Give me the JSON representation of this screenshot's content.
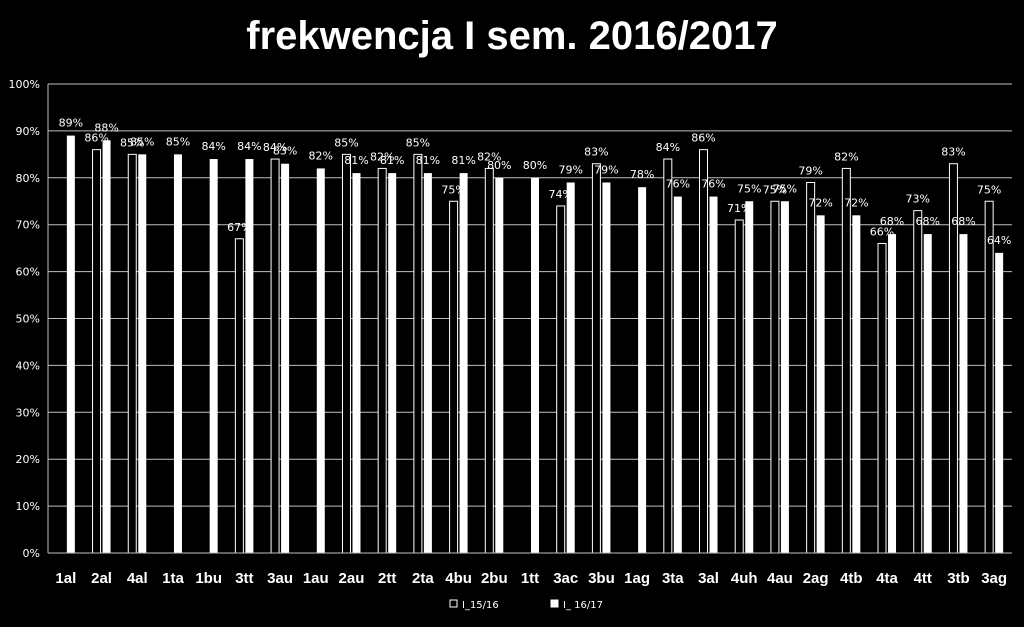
{
  "chart_data": {
    "type": "bar",
    "title": "frekwencja I sem. 2016/2017",
    "xlabel": "",
    "ylabel": "",
    "ylim": [
      0,
      100
    ],
    "y_ticks": [
      "0%",
      "10%",
      "20%",
      "30%",
      "40%",
      "50%",
      "60%",
      "70%",
      "80%",
      "90%",
      "100%"
    ],
    "grid": true,
    "legend_position": "bottom",
    "categories": [
      "1al",
      "2al",
      "4al",
      "1ta",
      "1bu",
      "3tt",
      "3au",
      "1au",
      "2au",
      "2tt",
      "2ta",
      "4bu",
      "2bu",
      "1tt",
      "3ac",
      "3bu",
      "1ag",
      "3ta",
      "3al",
      "4uh",
      "4au",
      "2ag",
      "4tb",
      "4ta",
      "4tt",
      "3tb",
      "3ag"
    ],
    "series": [
      {
        "name": "I_15/16",
        "color": "#000000",
        "values": [
          null,
          86,
          85,
          null,
          null,
          67,
          84,
          null,
          85,
          82,
          85,
          75,
          82,
          null,
          74,
          83,
          null,
          84,
          86,
          71,
          75,
          79,
          82,
          66,
          73,
          83,
          75
        ],
        "labels": [
          "",
          "86%",
          "85%",
          "",
          "",
          "67%",
          "84%",
          "",
          "85%",
          "82%",
          "85%",
          "75%",
          "82%",
          "",
          "74%",
          "83%",
          "",
          "84%",
          "86%",
          "71%",
          "75%",
          "79%",
          "82%",
          "66%",
          "73%",
          "83%",
          "75%"
        ]
      },
      {
        "name": "I_ 16/17",
        "color": "#ffffff",
        "values": [
          89,
          88,
          85,
          85,
          84,
          84,
          83,
          82,
          81,
          81,
          81,
          81,
          80,
          80,
          79,
          79,
          78,
          76,
          76,
          75,
          75,
          72,
          72,
          68,
          68,
          68,
          64
        ],
        "labels": [
          "89%",
          "88%",
          "85%",
          "85%",
          "84%",
          "84%",
          "83%",
          "82%",
          "81%",
          "81%",
          "81%",
          "81%",
          "80%",
          "80%",
          "79%",
          "79%",
          "78%",
          "76%",
          "76%",
          "75%",
          "75%",
          "72%",
          "72%",
          "68%",
          "68%",
          "68%",
          "64%"
        ]
      }
    ]
  }
}
